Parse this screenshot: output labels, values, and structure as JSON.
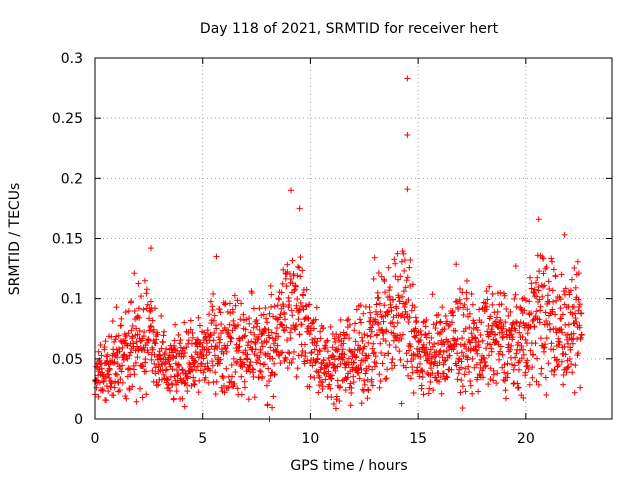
{
  "chart_data": {
    "type": "scatter",
    "title": "Day 118 of 2021, SRMTID for receiver hert",
    "xlabel": "GPS time / hours",
    "ylabel": "SRMTID / TECUs",
    "xlim": [
      0,
      24
    ],
    "ylim": [
      0,
      0.3
    ],
    "xticks": [
      0,
      5,
      10,
      15,
      20
    ],
    "xtick_labels": [
      "0",
      "5",
      "10",
      "15",
      "20"
    ],
    "yticks": [
      0,
      0.05,
      0.1,
      0.15,
      0.2,
      0.25,
      0.3
    ],
    "ytick_labels": [
      "0",
      "0.05",
      "0.1",
      "0.15",
      "0.2",
      "0.25",
      "0.3"
    ],
    "grid": true,
    "marker": "plus",
    "color": "#ff0000",
    "x_range_of_data": [
      0,
      22.6
    ],
    "notable_points": [
      {
        "x": 14.5,
        "y": 0.283
      },
      {
        "x": 14.5,
        "y": 0.236
      },
      {
        "x": 14.5,
        "y": 0.191
      },
      {
        "x": 9.1,
        "y": 0.19
      },
      {
        "x": 9.5,
        "y": 0.175
      },
      {
        "x": 20.6,
        "y": 0.166
      },
      {
        "x": 2.6,
        "y": 0.142
      },
      {
        "x": 21.8,
        "y": 0.153
      },
      {
        "x": 8.1,
        "y": 0.0
      }
    ],
    "trend": [
      [
        0.0,
        0.035
      ],
      [
        0.5,
        0.04
      ],
      [
        1.0,
        0.05
      ],
      [
        1.5,
        0.06
      ],
      [
        2.0,
        0.065
      ],
      [
        2.5,
        0.07
      ],
      [
        3.0,
        0.045
      ],
      [
        3.5,
        0.04
      ],
      [
        4.0,
        0.045
      ],
      [
        4.5,
        0.05
      ],
      [
        5.0,
        0.055
      ],
      [
        5.5,
        0.06
      ],
      [
        6.0,
        0.065
      ],
      [
        6.5,
        0.06
      ],
      [
        7.0,
        0.06
      ],
      [
        7.5,
        0.06
      ],
      [
        8.0,
        0.06
      ],
      [
        8.5,
        0.07
      ],
      [
        9.0,
        0.09
      ],
      [
        9.5,
        0.095
      ],
      [
        10.0,
        0.06
      ],
      [
        10.5,
        0.05
      ],
      [
        11.0,
        0.05
      ],
      [
        11.5,
        0.045
      ],
      [
        12.0,
        0.05
      ],
      [
        12.5,
        0.055
      ],
      [
        13.0,
        0.07
      ],
      [
        13.5,
        0.08
      ],
      [
        14.0,
        0.09
      ],
      [
        14.5,
        0.085
      ],
      [
        15.0,
        0.055
      ],
      [
        15.5,
        0.05
      ],
      [
        16.0,
        0.055
      ],
      [
        16.5,
        0.06
      ],
      [
        17.0,
        0.065
      ],
      [
        17.5,
        0.06
      ],
      [
        18.0,
        0.06
      ],
      [
        18.5,
        0.065
      ],
      [
        19.0,
        0.065
      ],
      [
        19.5,
        0.06
      ],
      [
        20.0,
        0.07
      ],
      [
        20.5,
        0.085
      ],
      [
        21.0,
        0.09
      ],
      [
        21.5,
        0.075
      ],
      [
        22.0,
        0.07
      ],
      [
        22.6,
        0.07
      ]
    ]
  }
}
